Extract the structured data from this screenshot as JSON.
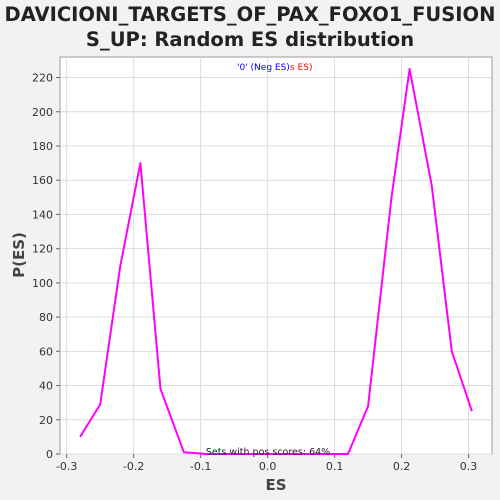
{
  "chart_data": {
    "type": "line",
    "title": "DAVICIONI_TARGETS_OF_PAX_FOXO1_FUSION\nS_UP: Random ES distribution",
    "xlabel": "ES",
    "ylabel": "P(ES)",
    "xlim": [
      -0.31,
      0.335
    ],
    "ylim": [
      0,
      232
    ],
    "x_ticks": [
      -0.3,
      -0.2,
      -0.1,
      0.0,
      0.1,
      0.2,
      0.3
    ],
    "x_tick_labels": [
      "-0.3",
      "-0.2",
      "-0.1",
      "0.0",
      "0.1",
      "0.2",
      "0.3"
    ],
    "y_ticks": [
      0,
      20,
      40,
      60,
      80,
      100,
      120,
      140,
      160,
      180,
      200,
      220
    ],
    "y_tick_labels": [
      "0",
      "20",
      "40",
      "60",
      "80",
      "100",
      "120",
      "140",
      "160",
      "180",
      "200",
      "220"
    ],
    "grid": true,
    "legend_position": "top-center",
    "legend": {
      "neg_label": "'0' (Neg ES)",
      "pos_label": "s ES)",
      "neg_color": "#0000ff",
      "pos_color": "#ff0000"
    },
    "annotation": "Sets with pos scores: 64%",
    "series": [
      {
        "color": "#ff00ff",
        "points": [
          [
            -0.28,
            10
          ],
          [
            -0.25,
            29
          ],
          [
            -0.22,
            110
          ],
          [
            -0.19,
            170
          ],
          [
            -0.16,
            38
          ],
          [
            -0.125,
            1
          ],
          [
            -0.09,
            0
          ],
          [
            0.12,
            0
          ],
          [
            0.15,
            28
          ],
          [
            0.185,
            150
          ],
          [
            0.212,
            225
          ],
          [
            0.245,
            157
          ],
          [
            0.275,
            60
          ],
          [
            0.305,
            25
          ]
        ]
      }
    ]
  }
}
